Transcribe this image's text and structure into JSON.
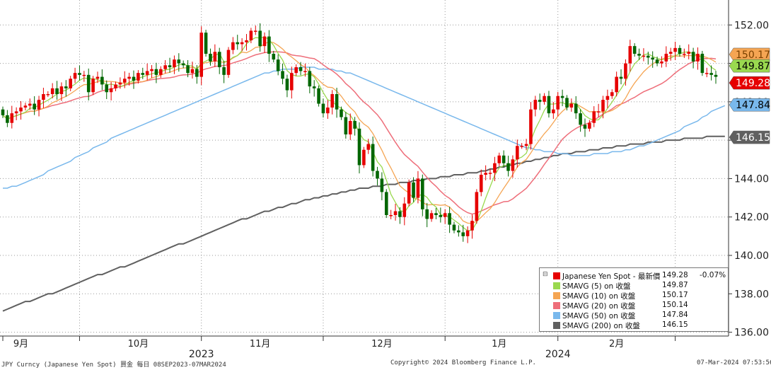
{
  "chart_data": {
    "type": "candlestick",
    "ylim": [
      135.8,
      153.3
    ],
    "y_ticks": [
      "152.00",
      "150.00",
      "148.00",
      "146.00",
      "144.00",
      "142.00",
      "140.00",
      "138.00",
      "136.00"
    ],
    "x_labels": [
      "9月",
      "10月",
      "11月",
      "12月",
      "1月",
      "2月"
    ],
    "year_labels": [
      "2023",
      "2024"
    ],
    "date_range": [
      "08SEP2023",
      "07MAR2024"
    ],
    "colors": {
      "up": "#e60000",
      "down": "#006600",
      "sma5": "#9ad94f",
      "sma10": "#f5a553",
      "sma20": "#ee6e7a",
      "sma50": "#79b8ec",
      "sma200": "#606060",
      "last_price_tag": "#e60000",
      "sma5_tag": "#9ad94f",
      "sma10_tag": "#f5a553",
      "sma50_tag": "#79b8ec",
      "sma200_tag": "#606060"
    },
    "closes": [
      147.3,
      146.9,
      147.4,
      147.5,
      147.7,
      147.8,
      147.9,
      147.6,
      148.1,
      148.4,
      148.4,
      148.7,
      148.4,
      148.8,
      148.7,
      149.2,
      149.5,
      149.4,
      149.4,
      148.5,
      149.2,
      149.3,
      148.9,
      148.5,
      148.7,
      148.9,
      149.0,
      149.2,
      149.3,
      149.1,
      149.5,
      149.4,
      149.6,
      149.7,
      149.4,
      149.7,
      149.9,
      149.8,
      150.2,
      150.0,
      149.9,
      149.5,
      149.7,
      149.3,
      151.6,
      150.5,
      150.1,
      150.6,
      149.8,
      149.4,
      150.7,
      151.1,
      151.0,
      151.1,
      151.2,
      151.7,
      151.7,
      150.9,
      151.4,
      150.5,
      150.2,
      149.6,
      149.2,
      148.6,
      149.5,
      149.8,
      149.6,
      149.6,
      148.8,
      148.7,
      147.9,
      147.4,
      147.7,
      148.4,
      147.6,
      147.2,
      146.3,
      147.0,
      146.6,
      144.7,
      145.5,
      145.8,
      144.4,
      144.0,
      143.3,
      142.1,
      142.1,
      142.3,
      142.0,
      142.7,
      143.8,
      143.0,
      144.0,
      142.4,
      141.9,
      142.2,
      142.1,
      142.0,
      142.2,
      141.6,
      141.3,
      141.2,
      141.0,
      141.3,
      141.8,
      143.3,
      144.2,
      144.3,
      144.3,
      144.8,
      145.2,
      144.8,
      144.4,
      145.0,
      145.7,
      145.7,
      145.8,
      147.6,
      148.1,
      148.0,
      148.3,
      147.4,
      147.6,
      148.3,
      148.2,
      147.7,
      147.9,
      147.4,
      146.8,
      146.6,
      146.9,
      147.5,
      147.5,
      148.1,
      148.3,
      148.5,
      149.3,
      149.2,
      150.0,
      150.9,
      150.5,
      150.4,
      150.4,
      150.3,
      150.2,
      150.0,
      150.1,
      150.5,
      150.6,
      150.8,
      150.5,
      150.5,
      150.6,
      150.1,
      150.5,
      149.5,
      149.5,
      149.4,
      149.3
    ],
    "sma50": [
      143.5,
      143.5,
      143.6,
      143.6,
      143.7,
      143.8,
      143.9,
      144.0,
      144.1,
      144.2,
      144.4,
      144.5,
      144.6,
      144.7,
      144.8,
      144.9,
      145.1,
      145.2,
      145.3,
      145.4,
      145.6,
      145.7,
      145.8,
      145.9,
      146.1,
      146.2,
      146.3,
      146.4,
      146.5,
      146.6,
      146.7,
      146.8,
      146.9,
      147.0,
      147.1,
      147.2,
      147.3,
      147.4,
      147.5,
      147.6,
      147.7,
      147.8,
      147.9,
      148.0,
      148.1,
      148.2,
      148.3,
      148.4,
      148.5,
      148.6,
      148.7,
      148.8,
      148.9,
      149.0,
      149.1,
      149.2,
      149.3,
      149.4,
      149.5,
      149.5,
      149.6,
      149.6,
      149.7,
      149.7,
      149.7,
      149.7,
      149.8,
      149.8,
      149.8,
      149.8,
      149.7,
      149.7,
      149.7,
      149.7,
      149.6,
      149.6,
      149.5,
      149.5,
      149.4,
      149.3,
      149.2,
      149.1,
      149.0,
      148.9,
      148.8,
      148.7,
      148.6,
      148.5,
      148.4,
      148.3,
      148.2,
      148.1,
      148.0,
      147.9,
      147.8,
      147.7,
      147.6,
      147.5,
      147.4,
      147.3,
      147.2,
      147.1,
      147.0,
      146.9,
      146.8,
      146.7,
      146.6,
      146.5,
      146.4,
      146.3,
      146.2,
      146.1,
      146.0,
      145.9,
      145.8,
      145.7,
      145.6,
      145.6,
      145.5,
      145.5,
      145.4,
      145.4,
      145.4,
      145.3,
      145.3,
      145.3,
      145.2,
      145.2,
      145.2,
      145.2,
      145.2,
      145.3,
      145.3,
      145.3,
      145.3,
      145.4,
      145.4,
      145.4,
      145.5,
      145.5,
      145.6,
      145.7,
      145.7,
      145.8,
      145.9,
      146.0,
      146.1,
      146.2,
      146.3,
      146.4,
      146.5,
      146.7,
      146.8,
      146.9,
      147.0,
      147.2,
      147.3,
      147.5,
      147.6,
      147.7,
      147.8
    ],
    "sma200": [
      137.1,
      137.2,
      137.3,
      137.4,
      137.5,
      137.6,
      137.6,
      137.7,
      137.8,
      137.9,
      138.0,
      138.0,
      138.1,
      138.2,
      138.3,
      138.4,
      138.5,
      138.6,
      138.7,
      138.8,
      138.9,
      139.0,
      139.0,
      139.1,
      139.2,
      139.3,
      139.4,
      139.4,
      139.5,
      139.6,
      139.7,
      139.8,
      139.9,
      140.0,
      140.1,
      140.2,
      140.3,
      140.4,
      140.5,
      140.6,
      140.6,
      140.7,
      140.8,
      140.9,
      141.0,
      141.1,
      141.2,
      141.3,
      141.4,
      141.5,
      141.6,
      141.7,
      141.8,
      141.9,
      141.9,
      142.0,
      142.1,
      142.2,
      142.3,
      142.3,
      142.4,
      142.5,
      142.5,
      142.6,
      142.7,
      142.7,
      142.8,
      142.9,
      142.9,
      143.0,
      143.0,
      143.1,
      143.1,
      143.2,
      143.2,
      143.3,
      143.3,
      143.4,
      143.4,
      143.5,
      143.5,
      143.5,
      143.6,
      143.6,
      143.6,
      143.7,
      143.7,
      143.7,
      143.8,
      143.8,
      143.8,
      143.9,
      143.9,
      143.9,
      144.0,
      144.0,
      144.0,
      144.1,
      144.1,
      144.1,
      144.2,
      144.2,
      144.2,
      144.3,
      144.3,
      144.3,
      144.4,
      144.4,
      144.5,
      144.5,
      144.6,
      144.6,
      144.7,
      144.7,
      144.8,
      144.8,
      144.9,
      144.9,
      145.0,
      145.0,
      145.1,
      145.1,
      145.2,
      145.2,
      145.3,
      145.3,
      145.3,
      145.4,
      145.4,
      145.4,
      145.5,
      145.5,
      145.5,
      145.6,
      145.6,
      145.6,
      145.7,
      145.7,
      145.7,
      145.8,
      145.8,
      145.8,
      145.8,
      145.9,
      145.9,
      145.9,
      145.9,
      146.0,
      146.0,
      146.0,
      146.0,
      146.1,
      146.1,
      146.1,
      146.1,
      146.1,
      146.2,
      146.2,
      146.2,
      146.2,
      146.2
    ],
    "legend": [
      {
        "name": "Japanese Yen Spot - 最新價",
        "value": "149.28",
        "change": "-0.07%",
        "color": "#e60000"
      },
      {
        "name": "SMAVG (5)  on 收盤",
        "value": "149.87",
        "change": "",
        "color": "#9ad94f"
      },
      {
        "name": "SMAVG (10)  on 收盤",
        "value": "150.17",
        "change": "",
        "color": "#f5a553"
      },
      {
        "name": "SMAVG (20)  on 收盤",
        "value": "150.14",
        "change": "",
        "color": "#ee6e7a"
      },
      {
        "name": "SMAVG (50)  on 收盤",
        "value": "147.84",
        "change": "",
        "color": "#79b8ec"
      },
      {
        "name": "SMAVG (200)  on 收盤",
        "value": "146.15",
        "change": "",
        "color": "#606060"
      }
    ],
    "price_tags": [
      {
        "text": "150.17",
        "value": 150.17,
        "color": "#f5a553",
        "text_color": "#7a4000"
      },
      {
        "text": "149.87",
        "value": 149.87,
        "color": "#9ad94f",
        "text_color": "#000000"
      },
      {
        "text": "149.28",
        "value": 149.28,
        "color": "#e60000",
        "text_color": "#ffffff"
      },
      {
        "text": "147.84",
        "value": 147.84,
        "color": "#79b8ec",
        "text_color": "#000000"
      },
      {
        "text": "146.15",
        "value": 146.15,
        "color": "#606060",
        "text_color": "#ffffff"
      }
    ]
  },
  "footer": {
    "left": "JPY Curncy (Japanese Yen Spot) 買金  每日 08SEP2023-07MAR2024",
    "center": "Copyright© 2024 Bloomberg Finance L.P.",
    "right": "07-Mar-2024 07:53:56"
  }
}
